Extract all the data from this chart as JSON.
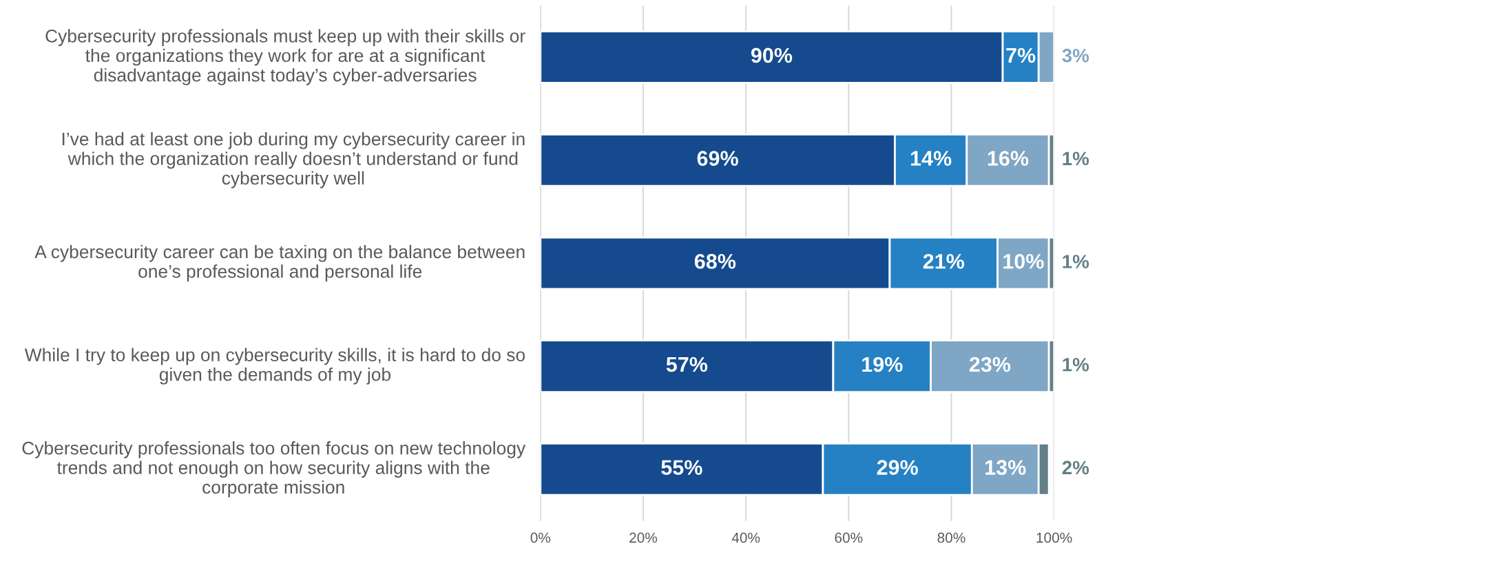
{
  "chart_data": {
    "type": "bar",
    "orientation": "horizontal",
    "stacked": true,
    "grid": "x",
    "legend": false,
    "categories": [
      "Cybersecurity professionals must keep up with their skills or\nthe organizations they work for are at a significant\ndisadvantage against today’s cyber-adversaries",
      "I’ve had at least one job during my cybersecurity career in\nwhich the organization really doesn’t understand or fund\ncybersecurity well",
      "A cybersecurity career can be taxing on the balance between\none’s professional and personal life",
      "While I try to keep up on cybersecurity skills, it is hard to do so\ngiven the demands of my job",
      "Cybersecurity professionals too often focus on new technology\ntrends and not enough on how security aligns with the\ncorporate mission"
    ],
    "series": [
      {
        "color": "#154b8e",
        "values": [
          90,
          69,
          68,
          57,
          55
        ],
        "value_labels": [
          "90%",
          "69%",
          "68%",
          "57%",
          "55%"
        ]
      },
      {
        "color": "#2581c4",
        "values": [
          7,
          14,
          21,
          19,
          29
        ],
        "value_labels": [
          "7%",
          "14%",
          "21%",
          "19%",
          "29%"
        ]
      },
      {
        "color": "#7fa6c5",
        "values": [
          3,
          16,
          10,
          23,
          13
        ],
        "value_labels": [
          "3%",
          "16%",
          "10%",
          "23%",
          "13%"
        ]
      },
      {
        "color": "#637f87",
        "values": [
          null,
          1,
          1,
          1,
          2
        ],
        "value_labels": [
          null,
          "1%",
          "1%",
          "1%",
          "2%"
        ]
      }
    ],
    "xlim": [
      0,
      100
    ],
    "xticks": [
      {
        "value": 0,
        "label": "0%"
      },
      {
        "value": 20,
        "label": "20%"
      },
      {
        "value": 40,
        "label": "40%"
      },
      {
        "value": 60,
        "label": "60%"
      },
      {
        "value": 80,
        "label": "80%"
      },
      {
        "value": 100,
        "label": "100%"
      }
    ]
  }
}
